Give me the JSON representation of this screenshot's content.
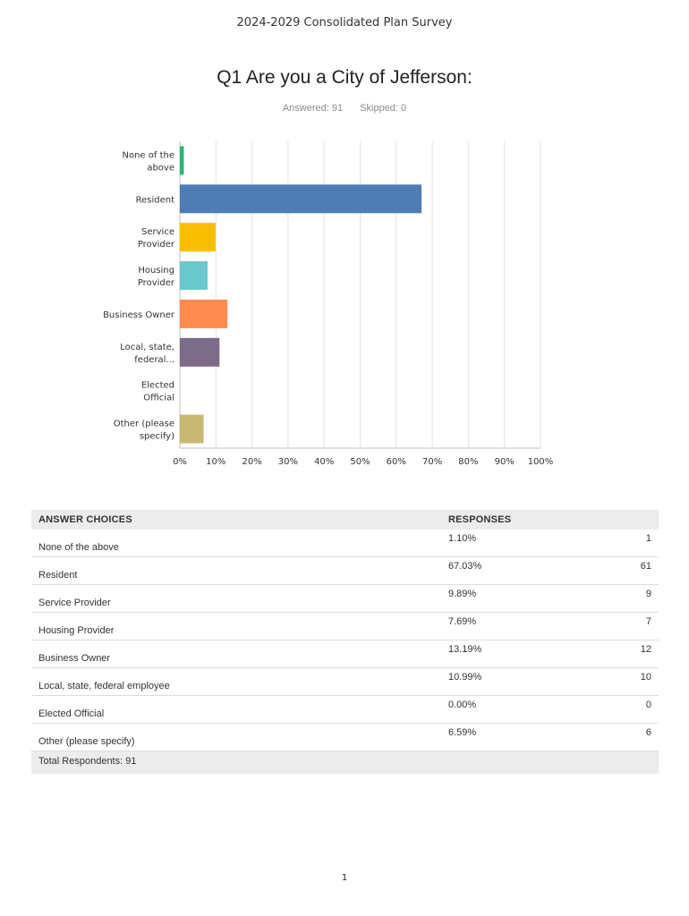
{
  "document": {
    "header": "2024-2029 Consolidated Plan Survey",
    "page_number": "1"
  },
  "question": {
    "title": "Q1 Are you a City of Jefferson:",
    "answered_text": "Answered: 91",
    "skipped_text": "Skipped: 0"
  },
  "chart_data": {
    "type": "bar",
    "orientation": "horizontal",
    "categories": [
      [
        "None of the",
        "above"
      ],
      [
        "Resident"
      ],
      [
        "Service",
        "Provider"
      ],
      [
        "Housing",
        "Provider"
      ],
      [
        "Business Owner"
      ],
      [
        "Local, state,",
        "federal..."
      ],
      [
        "Elected",
        "Official"
      ],
      [
        "Other (please",
        "specify)"
      ]
    ],
    "values": [
      1.1,
      67.03,
      9.89,
      7.69,
      13.19,
      10.99,
      0.0,
      6.59
    ],
    "colors": [
      "#2bb673",
      "#507cb6",
      "#f9be00",
      "#6bc8cd",
      "#ff8b4f",
      "#7d6b8a",
      "#e65e77",
      "#c9b774"
    ],
    "xlim": [
      0,
      100
    ],
    "x_ticks": [
      "0%",
      "10%",
      "20%",
      "30%",
      "40%",
      "50%",
      "60%",
      "70%",
      "80%",
      "90%",
      "100%"
    ],
    "xlabel": "",
    "ylabel": "",
    "grid": true
  },
  "table": {
    "headers": {
      "choice": "ANSWER CHOICES",
      "responses": "RESPONSES"
    },
    "rows": [
      {
        "choice": "None of the above",
        "percent": "1.10%",
        "count": "1"
      },
      {
        "choice": "Resident",
        "percent": "67.03%",
        "count": "61"
      },
      {
        "choice": "Service Provider",
        "percent": "9.89%",
        "count": "9"
      },
      {
        "choice": "Housing Provider",
        "percent": "7.69%",
        "count": "7"
      },
      {
        "choice": "Business Owner",
        "percent": "13.19%",
        "count": "12"
      },
      {
        "choice": "Local, state, federal employee",
        "percent": "10.99%",
        "count": "10"
      },
      {
        "choice": "Elected Official",
        "percent": "0.00%",
        "count": "0"
      },
      {
        "choice": "Other (please specify)",
        "percent": "6.59%",
        "count": "6"
      }
    ],
    "total_label": "Total Respondents: 91"
  }
}
